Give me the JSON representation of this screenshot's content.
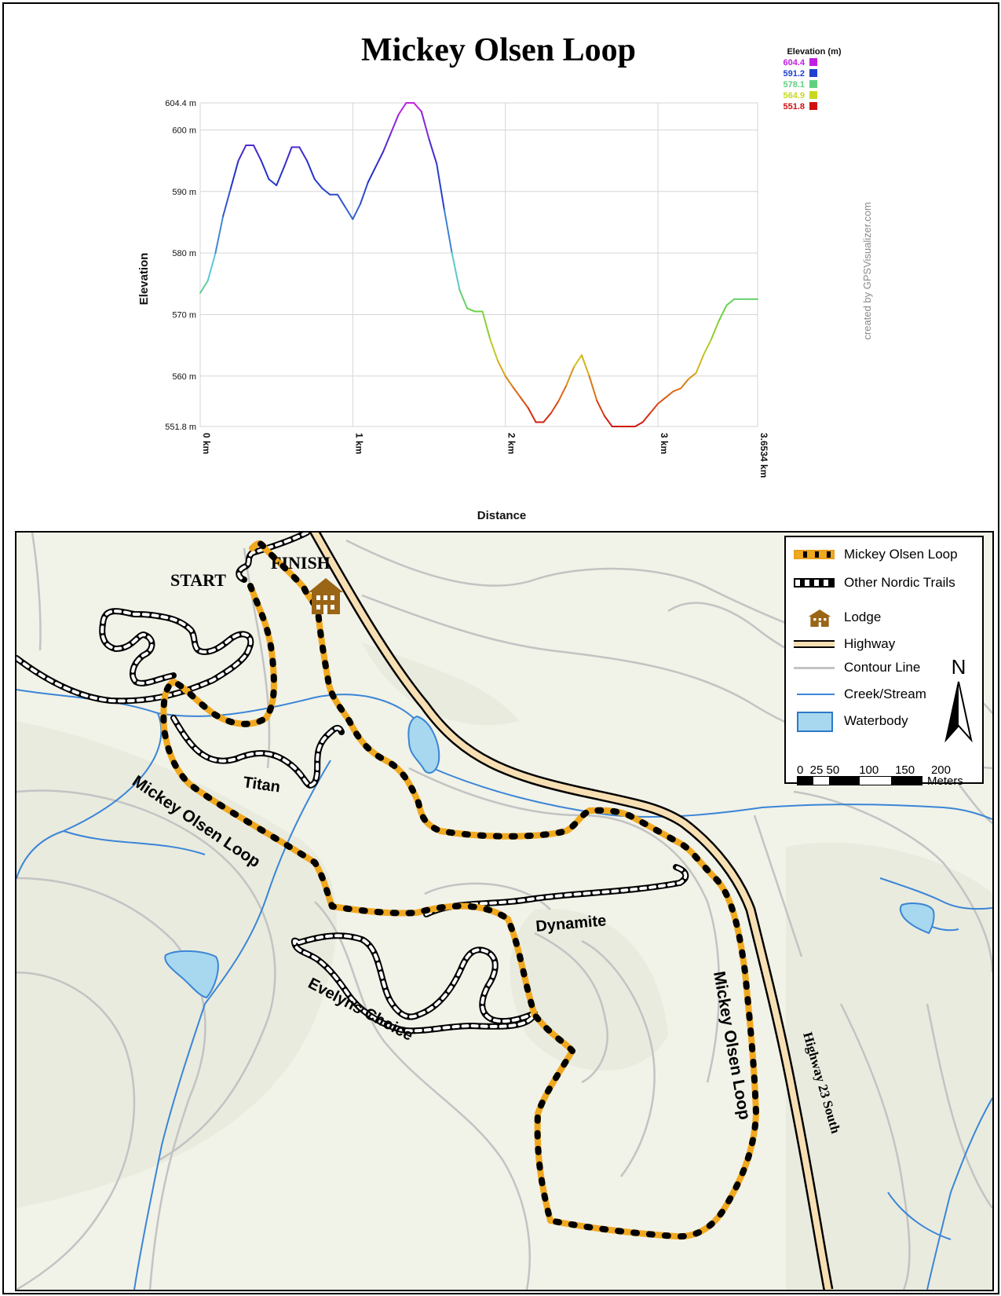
{
  "profile": {
    "title": "Mickey Olsen Loop",
    "credit": "created by GPSVisualizer.com",
    "legend_title": "Elevation (m)",
    "legend_items": [
      {
        "label": "604.4",
        "color": "#c020e0"
      },
      {
        "label": "591.2",
        "color": "#2040d0"
      },
      {
        "label": "578.1",
        "color": "#60d080"
      },
      {
        "label": "564.9",
        "color": "#c8d820"
      },
      {
        "label": "551.8",
        "color": "#d01010"
      }
    ]
  },
  "chart_data": {
    "type": "line",
    "title": "Mickey Olsen Loop",
    "xlabel": "Distance",
    "ylabel": "Elevation",
    "x_ticks": [
      "0 km",
      "1 km",
      "2 km",
      "3 km",
      "3.6534 km"
    ],
    "y_ticks": [
      "604.4 m",
      "600 m",
      "590 m",
      "580 m",
      "570 m",
      "560 m",
      "551.8 m"
    ],
    "xlim": [
      0,
      3.6534
    ],
    "ylim": [
      551.8,
      604.4
    ],
    "grid": true,
    "x": [
      0,
      0.05,
      0.1,
      0.15,
      0.2,
      0.25,
      0.3,
      0.35,
      0.4,
      0.45,
      0.5,
      0.55,
      0.6,
      0.65,
      0.7,
      0.75,
      0.8,
      0.85,
      0.9,
      0.95,
      1.0,
      1.05,
      1.1,
      1.15,
      1.2,
      1.25,
      1.3,
      1.35,
      1.4,
      1.45,
      1.5,
      1.55,
      1.6,
      1.65,
      1.7,
      1.75,
      1.8,
      1.85,
      1.9,
      1.95,
      2.0,
      2.05,
      2.1,
      2.15,
      2.2,
      2.25,
      2.3,
      2.35,
      2.4,
      2.45,
      2.5,
      2.55,
      2.6,
      2.65,
      2.7,
      2.75,
      2.8,
      2.85,
      2.9,
      2.95,
      3.0,
      3.05,
      3.1,
      3.15,
      3.2,
      3.25,
      3.3,
      3.35,
      3.4,
      3.45,
      3.5,
      3.55,
      3.6,
      3.6534
    ],
    "y": [
      573.5,
      575.5,
      580,
      586,
      590.5,
      595,
      597.5,
      597.5,
      595,
      592,
      591,
      594,
      597.2,
      597.2,
      595,
      592,
      590.5,
      589.5,
      589.5,
      587.5,
      585.5,
      588,
      591.5,
      594,
      596.5,
      599.5,
      602.5,
      604.4,
      604.4,
      603,
      598.5,
      594.5,
      587,
      580,
      574,
      571,
      570.5,
      570.5,
      566,
      562.5,
      560,
      558.2,
      556.5,
      554.8,
      552.5,
      552.5,
      554,
      556,
      558.5,
      561.5,
      563.4,
      560,
      556,
      553.5,
      551.8,
      551.8,
      551.8,
      551.8,
      552.5,
      554,
      555.5,
      556.5,
      557.5,
      558,
      559.5,
      560.5,
      563.5,
      566,
      569,
      571.5,
      572.5,
      572.5,
      572.5,
      572.5
    ]
  },
  "map": {
    "start_label": "START",
    "finish_label": "FINISH",
    "trail_labels": {
      "titan": "Titan",
      "mickey_west": "Mickey Olsen Loop",
      "mickey_east": "Mickey Olsen Loop",
      "dynamite": "Dynamite",
      "evelyns": "Evelyns Choice",
      "highway": "Highway 23 South"
    },
    "legend": {
      "loop": "Mickey Olsen Loop",
      "other_trails": "Other Nordic Trails",
      "lodge": "Lodge",
      "highway": "Highway",
      "contour": "Contour Line",
      "creek": "Creek/Stream",
      "waterbody": "Waterbody",
      "north": "N",
      "scale_ticks": "0  25 50      100     150     200",
      "scale_unit": "Meters"
    },
    "colors": {
      "loop": "#f0a81f",
      "trail": "#000000",
      "highway": "#f7dfb4",
      "contour": "#c3c3c3",
      "creek": "#3a85d6",
      "water": "#a7d8ef",
      "lodge": "#9a6515",
      "terrain": "#f1f2e8"
    }
  }
}
